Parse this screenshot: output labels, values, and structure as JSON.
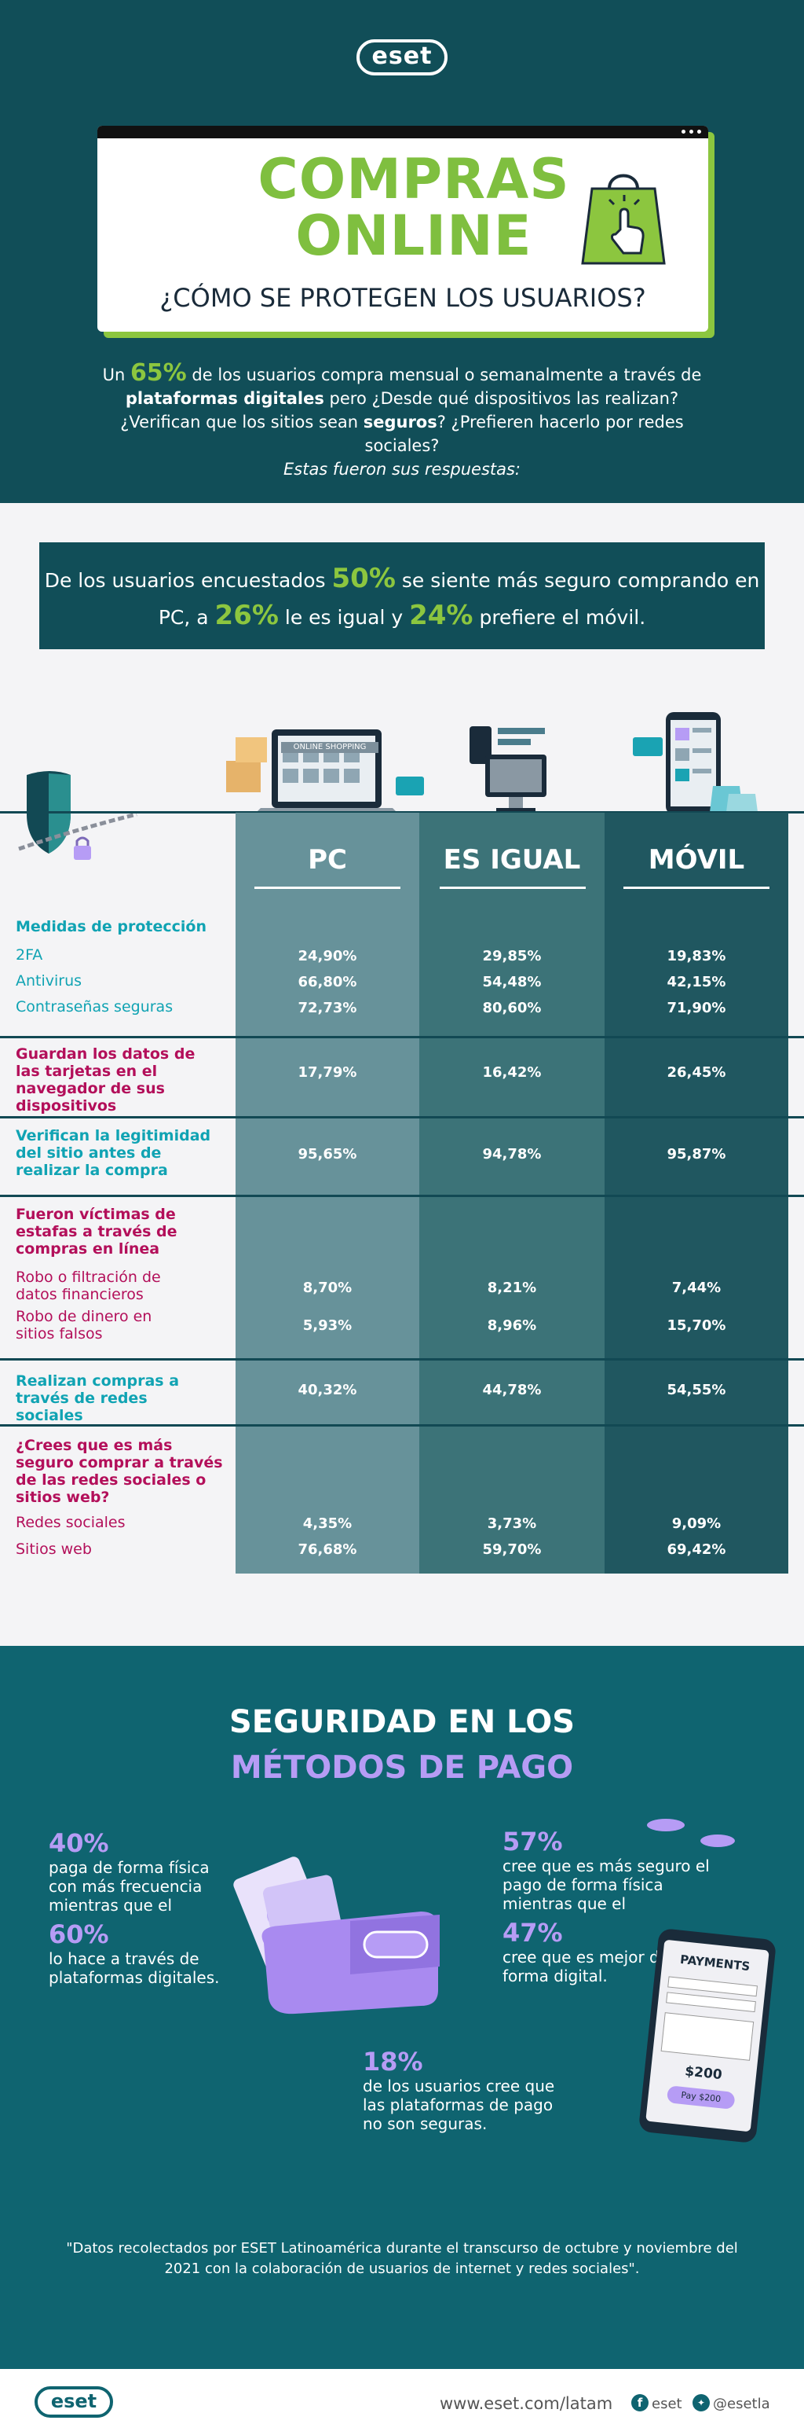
{
  "brand": {
    "logo": "eset"
  },
  "header": {
    "title_line1": "COMPRAS",
    "title_line2": "ONLINE",
    "subtitle": "¿CÓMO SE PROTEGEN LOS USUARIOS?",
    "intro_pre": "Un ",
    "intro_pct": "65%",
    "intro_mid1": " de los usuarios compra mensual o semanalmente a través de ",
    "intro_bold1": "plataformas digitales",
    "intro_mid2": " pero ¿Desde qué dispositivos las realizan? ¿Verifican que los sitios sean ",
    "intro_bold2": "seguros",
    "intro_mid3": "? ¿Prefieren hacerlo por redes sociales?",
    "intro_italic": "Estas fueron sus respuestas:"
  },
  "stat": {
    "pre": "De los usuarios encuestados ",
    "p1": "50%",
    "mid1": " se siente más seguro comprando en PC, a ",
    "p2": "26%",
    "mid2": " le es igual y ",
    "p3": "24%",
    "post": " prefiere el móvil."
  },
  "illustration": {
    "screen_label": "ONLINE SHOPPING"
  },
  "columns": [
    "PC",
    "ES IGUAL",
    "MÓVIL"
  ],
  "sections": {
    "proteccion": "Medidas de protección",
    "tarjetas": "Guardan los datos de las tarjetas en el navegador de sus dispositivos",
    "legitimidad": "Verifican la legitimidad del sitio antes de realizar la compra",
    "victimas": "Fueron víctimas de estafas a través de compras en línea",
    "redes": "Realizan compras a través de redes sociales",
    "seguro": "¿Crees que es más seguro comprar a través de las redes sociales o sitios web?"
  },
  "rows": {
    "r2fa": {
      "label": "2FA",
      "values": [
        "24,90%",
        "29,85%",
        "19,83%"
      ]
    },
    "antivirus": {
      "label": "Antivirus",
      "values": [
        "66,80%",
        "54,48%",
        "42,15%"
      ]
    },
    "contrasenas": {
      "label": "Contraseñas seguras",
      "values": [
        "72,73%",
        "80,60%",
        "71,90%"
      ]
    },
    "tarjetas": {
      "values": [
        "17,79%",
        "16,42%",
        "26,45%"
      ]
    },
    "legitimidad": {
      "values": [
        "95,65%",
        "94,78%",
        "95,87%"
      ]
    },
    "robo_fin": {
      "label": "Robo o filtración de datos financieros",
      "values": [
        "8,70%",
        "8,21%",
        "7,44%"
      ]
    },
    "robo_din": {
      "label": "Robo de dinero en sitios falsos",
      "values": [
        "5,93%",
        "8,96%",
        "15,70%"
      ]
    },
    "redes": {
      "values": [
        "40,32%",
        "44,78%",
        "54,55%"
      ]
    },
    "redes_sociales": {
      "label": "Redes sociales",
      "values": [
        "4,35%",
        "3,73%",
        "9,09%"
      ]
    },
    "sitios_web": {
      "label": "Sitios web",
      "values": [
        "76,68%",
        "59,70%",
        "69,42%"
      ]
    }
  },
  "payment": {
    "title1": "SEGURIDAD EN LOS",
    "title2": "MÉTODOS DE PAGO",
    "s40_num": "40%",
    "s40_text": "paga de forma física con más frecuencia mientras que el",
    "s60_num": "60%",
    "s60_text": "lo hace a través de plataformas digitales.",
    "s57_num": "57%",
    "s57_text": "cree que es más seguro el pago de forma física mientras que el",
    "s47_num": "47%",
    "s47_text": "cree que es mejor de forma digital.",
    "s18_num": "18%",
    "s18_text": "de los usuarios cree que las plataformas de pago no son seguras.",
    "phone_title": "PAYMENTS",
    "phone_amount": "$200",
    "phone_btn": "Pay $200"
  },
  "quote": "\"Datos recolectados por ESET Latinoamérica durante el transcurso de octubre y noviembre del 2021 con la colaboración de usuarios de internet y redes sociales\".",
  "footer": {
    "url": "www.eset.com/latam",
    "facebook": "eset",
    "twitter": "@esetla"
  },
  "colors": {
    "teal_dark": "#114e58",
    "green": "#8cc63f",
    "lilac": "#b69cf5",
    "magenta": "#b30f5a",
    "cyan": "#10a3b3"
  }
}
